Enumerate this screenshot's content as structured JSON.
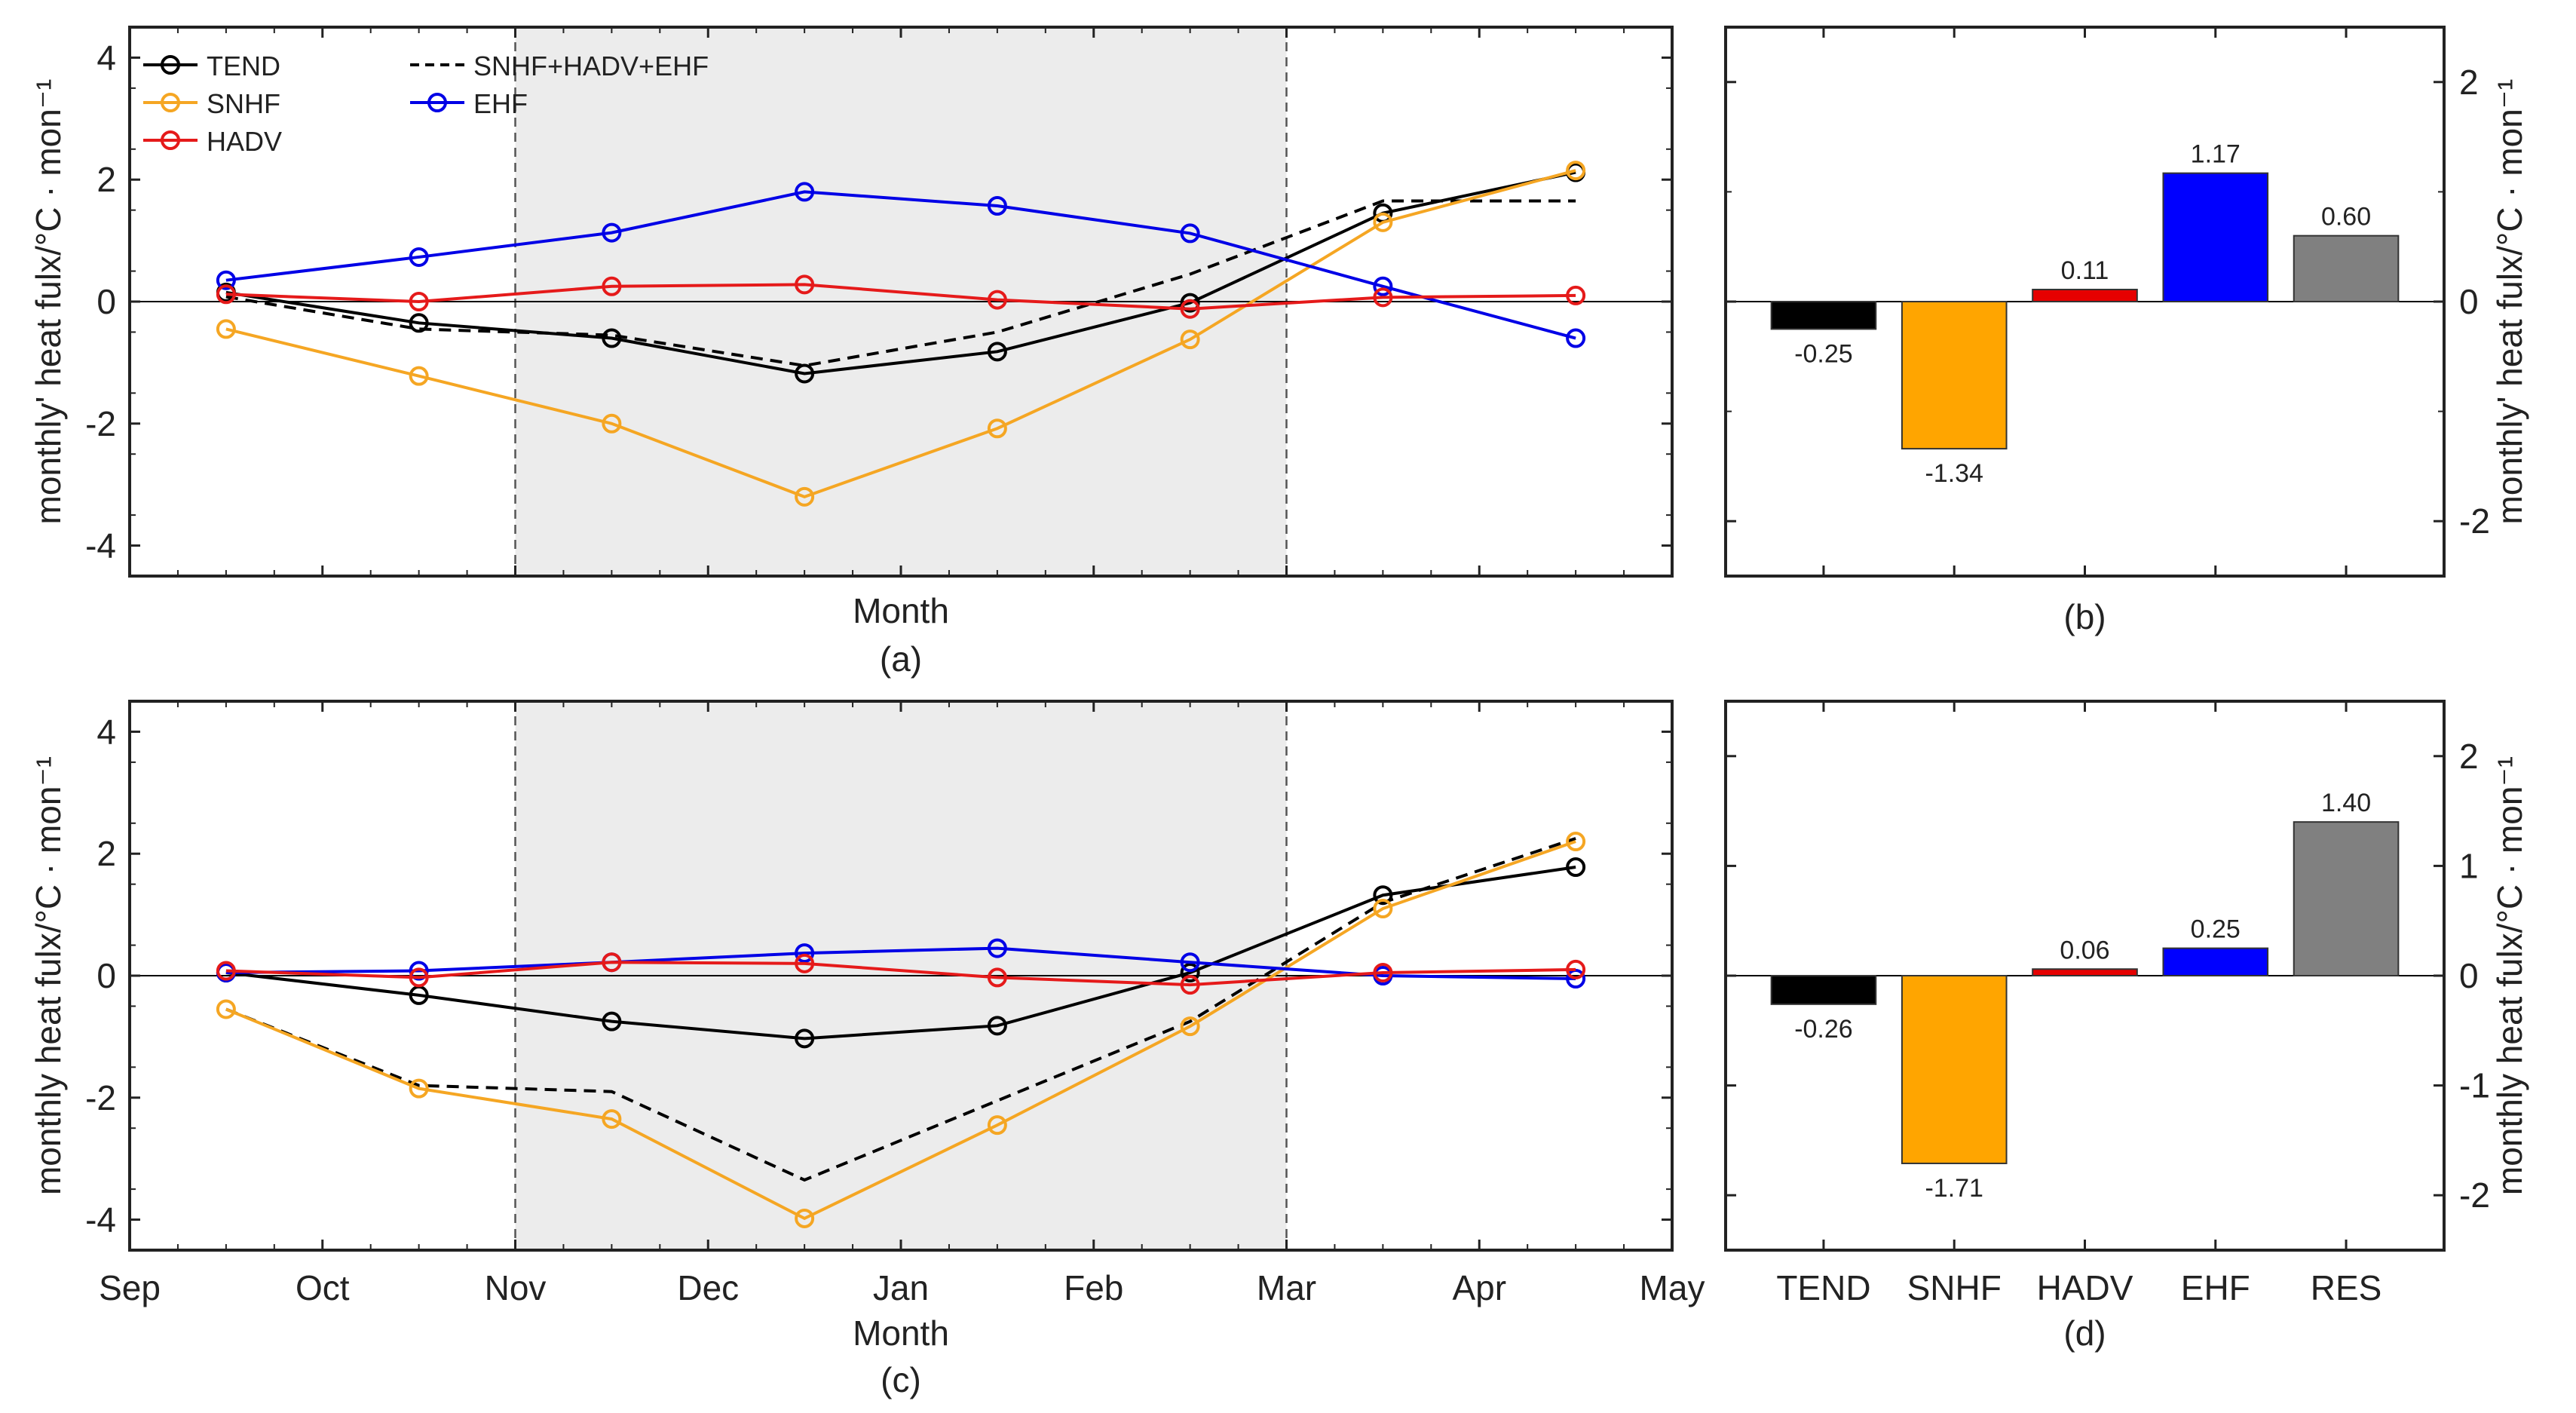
{
  "chart_data": [
    {
      "id": "a",
      "type": "line",
      "panel_label": "(a)",
      "xlabel": "Month",
      "ylabel": "monthly' heat fulx/°C · mon⁻¹",
      "ylim": [
        -4.5,
        4.5
      ],
      "yticks": [
        -4,
        -2,
        0,
        2,
        4
      ],
      "xlim": [
        "Sep",
        "May"
      ],
      "x": [
        "mid-Sep",
        "mid-Oct",
        "mid-Nov",
        "mid-Dec",
        "mid-Jan",
        "mid-Feb",
        "mid-Mar",
        "mid-Apr"
      ],
      "shaded_region": [
        "Nov",
        "Mar"
      ],
      "legend_position": "top-left",
      "series": [
        {
          "name": "TEND",
          "color": "#000000",
          "marker": "circle",
          "dashed": false,
          "values": [
            0.15,
            -0.35,
            -0.6,
            -1.18,
            -0.82,
            -0.02,
            1.45,
            2.12
          ]
        },
        {
          "name": "SNHF+HADV+EHF",
          "color": "#000000",
          "marker": "none",
          "dashed": true,
          "values": [
            0.08,
            -0.45,
            -0.55,
            -1.05,
            -0.5,
            0.45,
            1.65,
            1.65
          ]
        },
        {
          "name": "SNHF",
          "color": "#F5A623",
          "marker": "circle",
          "dashed": false,
          "values": [
            -0.45,
            -1.22,
            -2.0,
            -3.2,
            -2.08,
            -0.62,
            1.3,
            2.15
          ]
        },
        {
          "name": "EHF",
          "color": "#0000E6",
          "marker": "circle",
          "dashed": false,
          "values": [
            0.35,
            0.73,
            1.13,
            1.8,
            1.57,
            1.12,
            0.25,
            -0.6
          ]
        },
        {
          "name": "HADV",
          "color": "#E51A1A",
          "marker": "circle",
          "dashed": false,
          "values": [
            0.12,
            0.0,
            0.25,
            0.28,
            0.03,
            -0.12,
            0.07,
            0.1
          ]
        }
      ]
    },
    {
      "id": "b",
      "type": "bar",
      "panel_label": "(b)",
      "ylabel": "monthly' heat fulx/°C · mon⁻¹",
      "ylim": [
        -2.5,
        2.5
      ],
      "yticks": [
        -2,
        0,
        2
      ],
      "categories": [
        "TEND",
        "SNHF",
        "HADV",
        "EHF",
        "RES"
      ],
      "values": [
        -0.25,
        -1.34,
        0.11,
        1.17,
        0.6
      ],
      "value_labels": [
        "-0.25",
        "-1.34",
        "0.11",
        "1.17",
        "0.60"
      ],
      "colors": [
        "#000000",
        "#FFA500",
        "#E60000",
        "#0000FF",
        "#808080"
      ]
    },
    {
      "id": "c",
      "type": "line",
      "panel_label": "(c)",
      "xlabel": "Month",
      "ylabel": "monthly heat fulx/°C · mon⁻¹",
      "ylim": [
        -4.5,
        4.5
      ],
      "yticks": [
        -4,
        -2,
        0,
        2,
        4
      ],
      "xlim": [
        "Sep",
        "May"
      ],
      "xticks": [
        "Sep",
        "Oct",
        "Nov",
        "Dec",
        "Jan",
        "Feb",
        "Mar",
        "Apr",
        "May"
      ],
      "x": [
        "mid-Sep",
        "mid-Oct",
        "mid-Nov",
        "mid-Dec",
        "mid-Jan",
        "mid-Feb",
        "mid-Mar",
        "mid-Apr"
      ],
      "shaded_region": [
        "Nov",
        "Mar"
      ],
      "series": [
        {
          "name": "TEND",
          "color": "#000000",
          "marker": "circle",
          "dashed": false,
          "values": [
            0.05,
            -0.32,
            -0.75,
            -1.03,
            -0.82,
            0.05,
            1.32,
            1.78
          ]
        },
        {
          "name": "SNHF+HADV+EHF",
          "color": "#000000",
          "marker": "none",
          "dashed": true,
          "values": [
            -0.55,
            -1.8,
            -1.9,
            -3.35,
            -2.05,
            -0.75,
            1.2,
            2.25
          ]
        },
        {
          "name": "SNHF",
          "color": "#F5A623",
          "marker": "circle",
          "dashed": false,
          "values": [
            -0.55,
            -1.85,
            -2.35,
            -3.98,
            -2.45,
            -0.83,
            1.1,
            2.2
          ]
        },
        {
          "name": "EHF",
          "color": "#0000E6",
          "marker": "circle",
          "dashed": false,
          "values": [
            0.05,
            0.08,
            0.22,
            0.37,
            0.45,
            0.22,
            0.0,
            -0.05
          ]
        },
        {
          "name": "HADV",
          "color": "#E51A1A",
          "marker": "circle",
          "dashed": false,
          "values": [
            0.08,
            -0.03,
            0.22,
            0.2,
            -0.03,
            -0.15,
            0.05,
            0.1
          ]
        }
      ]
    },
    {
      "id": "d",
      "type": "bar",
      "panel_label": "(d)",
      "ylabel": "monthly heat fulx/°C · mon⁻¹",
      "ylim": [
        -2.5,
        2.5
      ],
      "yticks": [
        -2,
        -1,
        0,
        1,
        2
      ],
      "categories": [
        "TEND",
        "SNHF",
        "HADV",
        "EHF",
        "RES"
      ],
      "values": [
        -0.26,
        -1.71,
        0.06,
        0.25,
        1.4
      ],
      "value_labels": [
        "-0.26",
        "-1.71",
        "0.06",
        "0.25",
        "1.40"
      ],
      "colors": [
        "#000000",
        "#FFA500",
        "#E60000",
        "#0000FF",
        "#808080"
      ]
    }
  ]
}
